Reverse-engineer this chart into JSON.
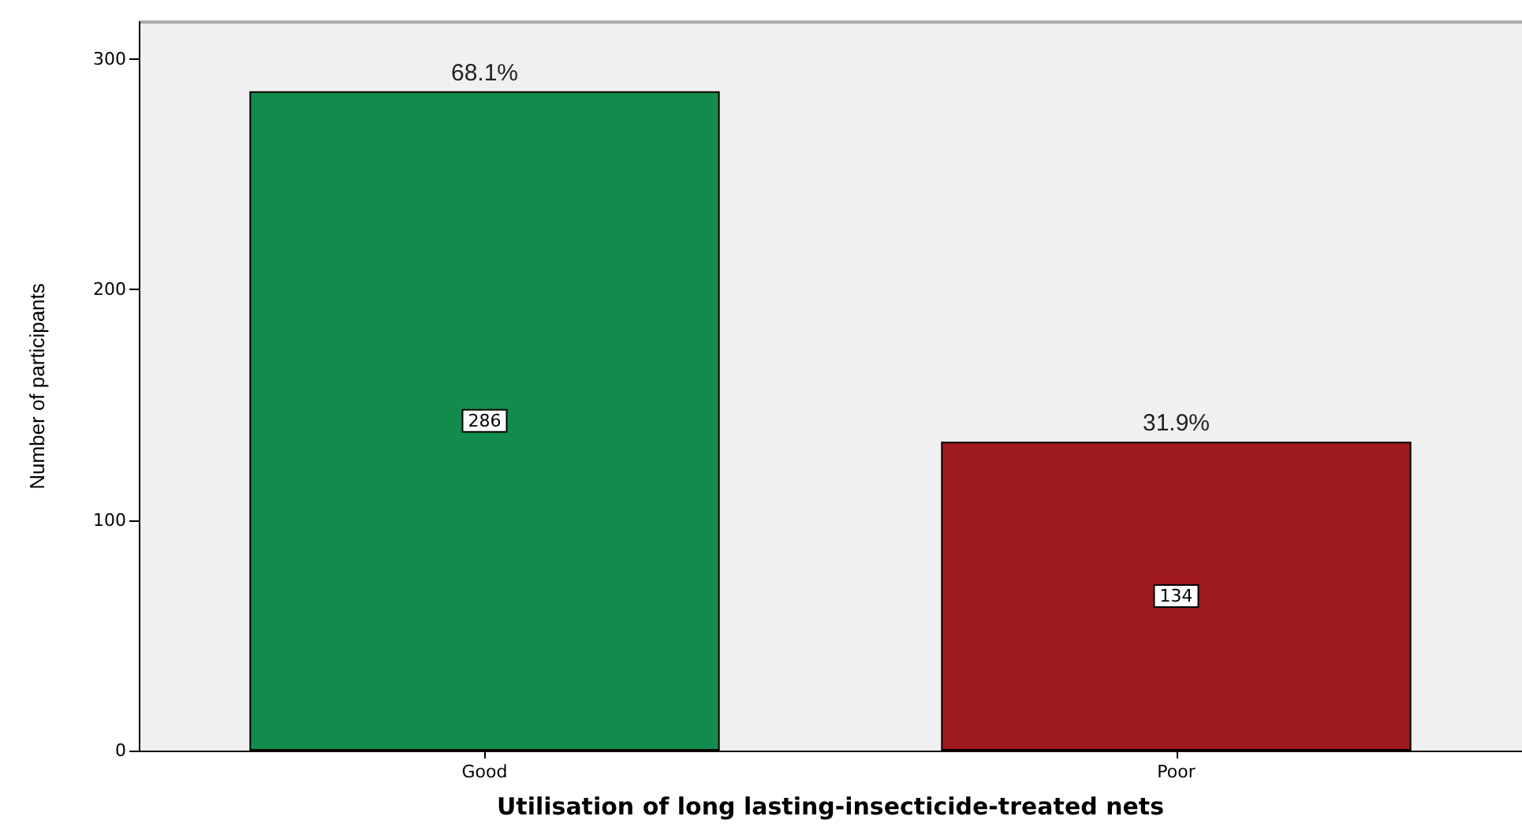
{
  "chart_data": {
    "type": "bar",
    "xlabel": "Utilisation of long lasting-insecticide-treated nets",
    "ylabel": "Number of participants",
    "categories": [
      "Good",
      "Poor"
    ],
    "values": [
      286,
      134
    ],
    "colors": [
      "#118c4e",
      "#9e1a1d"
    ],
    "ylim": [
      0,
      316
    ],
    "yticks": [
      0,
      100,
      200,
      300
    ],
    "grid": false,
    "data_labels": true,
    "annotations": [
      {
        "text": "68.1%",
        "x": "Good",
        "y": 286
      },
      {
        "text": "31.9%",
        "x": "Poor",
        "y": 134
      }
    ]
  }
}
